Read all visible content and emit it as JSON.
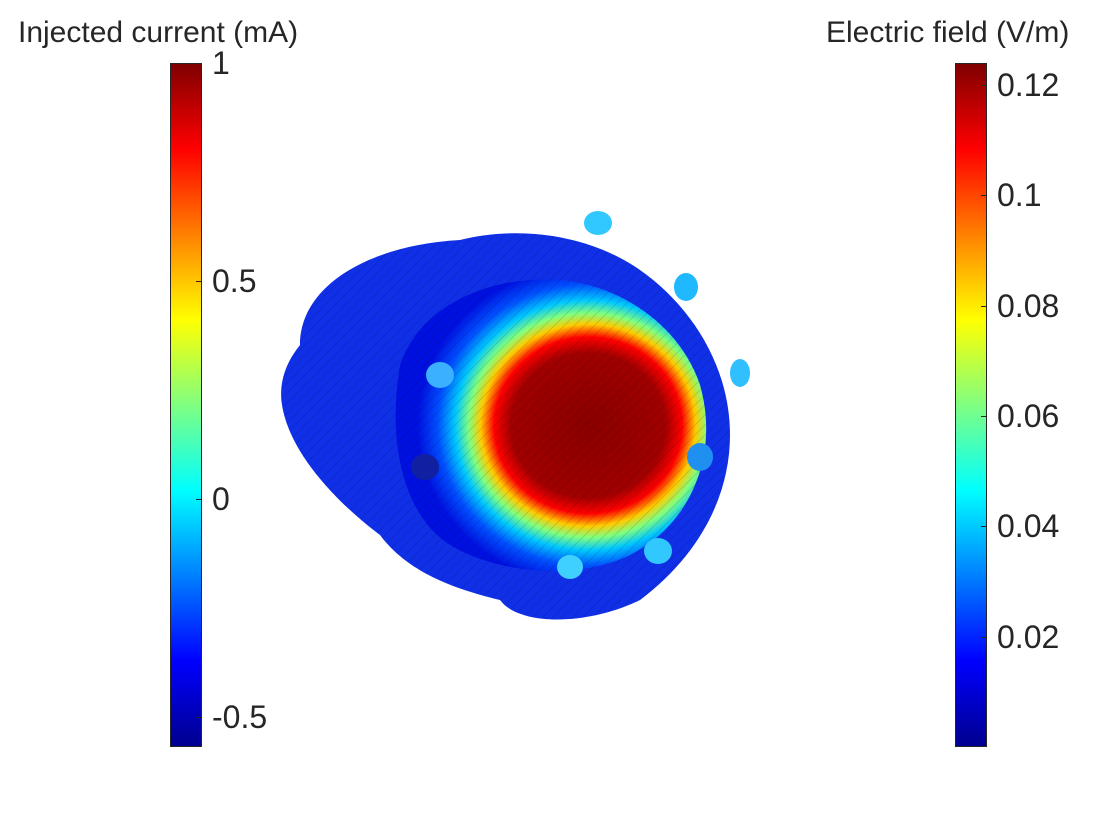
{
  "left_colorbar": {
    "title": "Injected current (mA)",
    "ticks": [
      {
        "label": "1",
        "value": 1
      },
      {
        "label": "0.5",
        "value": 0.5
      },
      {
        "label": "0",
        "value": 0
      },
      {
        "label": "-0.5",
        "value": -0.5
      }
    ],
    "range": [
      -0.57,
      1.0
    ]
  },
  "right_colorbar": {
    "title": "Electric field (V/m)",
    "ticks": [
      {
        "label": "0.12",
        "value": 0.12
      },
      {
        "label": "0.1",
        "value": 0.1
      },
      {
        "label": "0.08",
        "value": 0.08
      },
      {
        "label": "0.06",
        "value": 0.06
      },
      {
        "label": "0.04",
        "value": 0.04
      },
      {
        "label": "0.02",
        "value": 0.02
      }
    ],
    "range": [
      0.0,
      0.124
    ]
  },
  "colormap": "jet",
  "colors": {
    "jet_stops": [
      "#00008f",
      "#0000ff",
      "#0080ff",
      "#00ffff",
      "#80ff80",
      "#ffff00",
      "#ff8000",
      "#ff0000",
      "#800000"
    ]
  }
}
